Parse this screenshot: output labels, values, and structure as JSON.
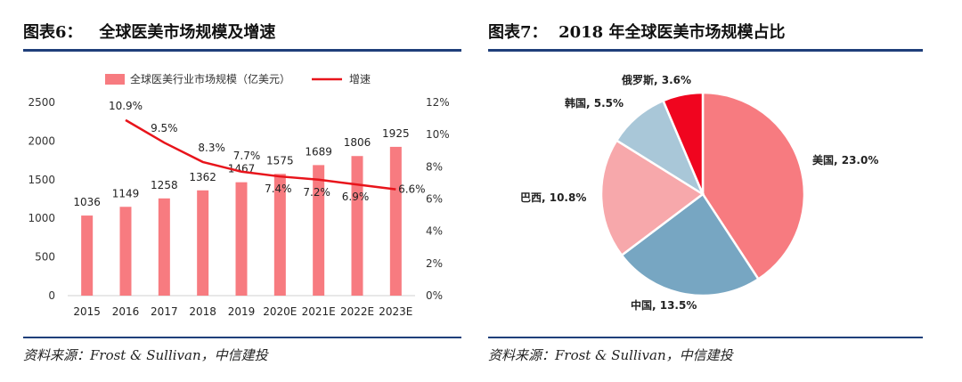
{
  "left": {
    "title_label": "图表6：",
    "title_text": "全球医美市场规模及增速",
    "source": "资料来源：Frost & Sullivan，中信建投"
  },
  "right": {
    "title_label": "图表7：",
    "title_text": "2018 年全球医美市场规模占比",
    "source": "资料来源：Frost & Sullivan，中信建投"
  },
  "chart_data": [
    {
      "type": "bar",
      "title": "全球医美市场规模及增速",
      "categories": [
        "2015",
        "2016",
        "2017",
        "2018",
        "2019",
        "2020E",
        "2021E",
        "2022E",
        "2023E"
      ],
      "series": [
        {
          "name": "全球医美行业市场规模（亿美元）",
          "type": "bar",
          "axis": "left",
          "color": "#f77b80",
          "values": [
            1036,
            1149,
            1258,
            1362,
            1467,
            1575,
            1689,
            1806,
            1925
          ]
        },
        {
          "name": "增速",
          "type": "line",
          "axis": "right",
          "color": "#e8141b",
          "values": [
            null,
            10.9,
            9.5,
            8.3,
            7.7,
            7.4,
            7.2,
            6.9,
            6.6
          ],
          "labels": [
            "",
            "10.9%",
            "9.5%",
            "8.3%",
            "7.7%",
            "7.4%",
            "7.2%",
            "6.9%",
            "6.6%"
          ]
        }
      ],
      "y_left": {
        "min": 0,
        "max": 2500,
        "ticks": [
          0,
          500,
          1000,
          1500,
          2000,
          2500
        ]
      },
      "y_right": {
        "min": 0,
        "max": 12,
        "ticks": [
          "0%",
          "2%",
          "4%",
          "6%",
          "8%",
          "10%",
          "12%"
        ]
      },
      "legend": "top"
    },
    {
      "type": "pie",
      "title": "2018 年全球医美市场规模占比",
      "slices": [
        {
          "label": "美国",
          "value": 23.0,
          "display": "美国, 23.0%",
          "color": "#f77b80"
        },
        {
          "label": "中国",
          "value": 13.5,
          "display": "中国, 13.5%",
          "color": "#77a6c2"
        },
        {
          "label": "巴西",
          "value": 10.8,
          "display": "巴西, 10.8%",
          "color": "#f7a8ab"
        },
        {
          "label": "韩国",
          "value": 5.5,
          "display": "韩国, 5.5%",
          "color": "#a9c7d8"
        },
        {
          "label": "俄罗斯",
          "value": 3.6,
          "display": "俄罗斯, 3.6%",
          "color": "#f0051f"
        }
      ]
    }
  ]
}
